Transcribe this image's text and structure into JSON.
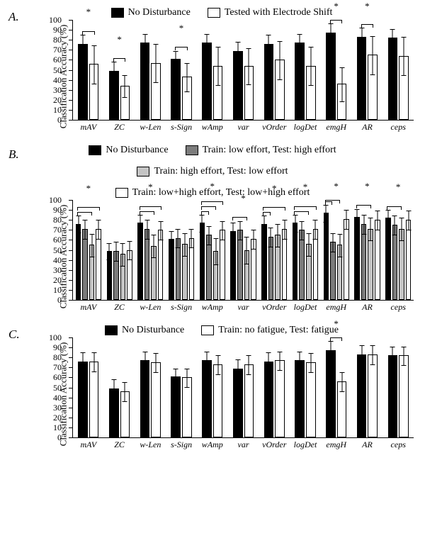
{
  "colors": {
    "black": "#000000",
    "darkgray": "#7c7c7c",
    "lightgray": "#c4c4c4",
    "white": "#ffffff",
    "border": "#000000"
  },
  "categories": [
    "mAV",
    "ZC",
    "w-Len",
    "s-Sign",
    "wAmp",
    "var",
    "vOrder",
    "logDet",
    "emgH",
    "AR",
    "ceps"
  ],
  "yaxis": {
    "title": "Classification Accuracy (%)",
    "ticks": [
      0,
      10,
      20,
      30,
      40,
      50,
      60,
      70,
      80,
      90,
      100
    ],
    "max": 100
  },
  "panels": [
    {
      "id": "A",
      "label": "A.",
      "legend": [
        {
          "label": "No Disturbance",
          "colorKey": "black"
        },
        {
          "label": "Tested with Electrode Shift",
          "colorKey": "white"
        }
      ],
      "series": [
        {
          "colorKey": "black",
          "values": [
            76,
            49,
            77,
            61,
            77,
            69,
            76,
            77,
            87,
            83,
            82
          ],
          "errUp": [
            10,
            10,
            10,
            9,
            10,
            10,
            10,
            10,
            10,
            10,
            10
          ],
          "errDn": [
            10,
            10,
            10,
            9,
            10,
            10,
            10,
            10,
            10,
            10,
            10
          ]
        },
        {
          "colorKey": "white",
          "values": [
            56,
            34,
            57,
            43,
            54,
            54,
            60,
            54,
            36,
            65,
            64
          ],
          "errUp": [
            20,
            12,
            20,
            15,
            20,
            19,
            20,
            20,
            18,
            20,
            20
          ],
          "errDn": [
            20,
            12,
            20,
            15,
            20,
            19,
            20,
            20,
            18,
            20,
            20
          ]
        }
      ],
      "sig": [
        {
          "cat": 0,
          "pairs": [
            [
              0,
              1
            ]
          ]
        },
        {
          "cat": 1,
          "pairs": [
            [
              0,
              1
            ]
          ]
        },
        {
          "cat": 3,
          "pairs": [
            [
              0,
              1
            ]
          ]
        },
        {
          "cat": 8,
          "pairs": [
            [
              0,
              1
            ]
          ]
        },
        {
          "cat": 9,
          "pairs": [
            [
              0,
              1
            ]
          ]
        }
      ],
      "barWidthFrac": 0.36
    },
    {
      "id": "B",
      "label": "B.",
      "legend": [
        {
          "label": "No Disturbance",
          "colorKey": "black"
        },
        {
          "label": "Train: low effort, Test: high effort",
          "colorKey": "darkgray"
        },
        {
          "label": "Train: high effort, Test: low effort",
          "colorKey": "lightgray"
        },
        {
          "label": "Train: low+high effort, Test: low+high effort",
          "colorKey": "white"
        }
      ],
      "series": [
        {
          "colorKey": "black",
          "values": [
            76,
            49,
            77,
            61,
            77,
            69,
            76,
            77,
            87,
            83,
            82
          ],
          "errUp": [
            9,
            9,
            9,
            9,
            9,
            9,
            9,
            9,
            9,
            9,
            9
          ],
          "errDn": [
            9,
            9,
            9,
            9,
            9,
            9,
            9,
            9,
            9,
            9,
            9
          ]
        },
        {
          "colorKey": "darkgray",
          "values": [
            71,
            49,
            71,
            62,
            65,
            70,
            63,
            70,
            58,
            76,
            75
          ],
          "errUp": [
            10,
            10,
            10,
            10,
            10,
            10,
            10,
            10,
            10,
            10,
            10
          ],
          "errDn": [
            10,
            10,
            10,
            10,
            10,
            10,
            10,
            10,
            10,
            10,
            10
          ]
        },
        {
          "colorKey": "lightgray",
          "values": [
            55,
            46,
            54,
            56,
            49,
            50,
            65,
            56,
            55,
            71,
            71
          ],
          "errUp": [
            12,
            12,
            12,
            12,
            14,
            14,
            12,
            12,
            12,
            12,
            12
          ],
          "errDn": [
            12,
            12,
            12,
            12,
            14,
            14,
            12,
            12,
            12,
            12,
            12
          ]
        },
        {
          "colorKey": "white",
          "values": [
            71,
            50,
            70,
            62,
            70,
            61,
            71,
            71,
            81,
            80,
            80
          ],
          "errUp": [
            10,
            10,
            10,
            10,
            10,
            10,
            10,
            10,
            10,
            10,
            10
          ],
          "errDn": [
            10,
            10,
            10,
            10,
            10,
            10,
            10,
            10,
            10,
            10,
            10
          ]
        }
      ],
      "sig": [
        {
          "cat": 0,
          "pairs": [
            [
              0,
              2
            ],
            [
              0,
              3
            ]
          ]
        },
        {
          "cat": 2,
          "pairs": [
            [
              0,
              2
            ],
            [
              0,
              3
            ]
          ]
        },
        {
          "cat": 4,
          "pairs": [
            [
              0,
              1
            ],
            [
              0,
              2
            ],
            [
              0,
              3
            ]
          ]
        },
        {
          "cat": 5,
          "pairs": [
            [
              0,
              2
            ]
          ]
        },
        {
          "cat": 6,
          "pairs": [
            [
              0,
              1
            ],
            [
              0,
              3
            ]
          ]
        },
        {
          "cat": 7,
          "pairs": [
            [
              0,
              2
            ],
            [
              0,
              3
            ]
          ]
        },
        {
          "cat": 8,
          "pairs": [
            [
              0,
              1
            ],
            [
              0,
              2
            ]
          ]
        },
        {
          "cat": 9,
          "pairs": [
            [
              0,
              2
            ]
          ]
        },
        {
          "cat": 10,
          "pairs": [
            [
              0,
              2
            ]
          ]
        }
      ],
      "barWidthFrac": 0.2
    },
    {
      "id": "C",
      "label": "C.",
      "legend": [
        {
          "label": "No Disturbance",
          "colorKey": "black"
        },
        {
          "label": "Train: no fatigue, Test: fatigue",
          "colorKey": "white"
        }
      ],
      "series": [
        {
          "colorKey": "black",
          "values": [
            76,
            49,
            77,
            61,
            77,
            69,
            76,
            77,
            87,
            83,
            82
          ],
          "errUp": [
            10,
            10,
            10,
            9,
            10,
            10,
            10,
            10,
            10,
            10,
            10
          ],
          "errDn": [
            10,
            10,
            10,
            9,
            10,
            10,
            10,
            10,
            10,
            10,
            10
          ]
        },
        {
          "colorKey": "white",
          "values": [
            76,
            46,
            75,
            60,
            73,
            73,
            77,
            75,
            56,
            83,
            82
          ],
          "errUp": [
            10,
            10,
            10,
            10,
            10,
            10,
            10,
            10,
            10,
            10,
            10
          ],
          "errDn": [
            10,
            10,
            10,
            10,
            10,
            10,
            10,
            10,
            10,
            10,
            10
          ]
        }
      ],
      "sig": [
        {
          "cat": 8,
          "pairs": [
            [
              0,
              1
            ]
          ]
        }
      ],
      "barWidthFrac": 0.36
    }
  ]
}
